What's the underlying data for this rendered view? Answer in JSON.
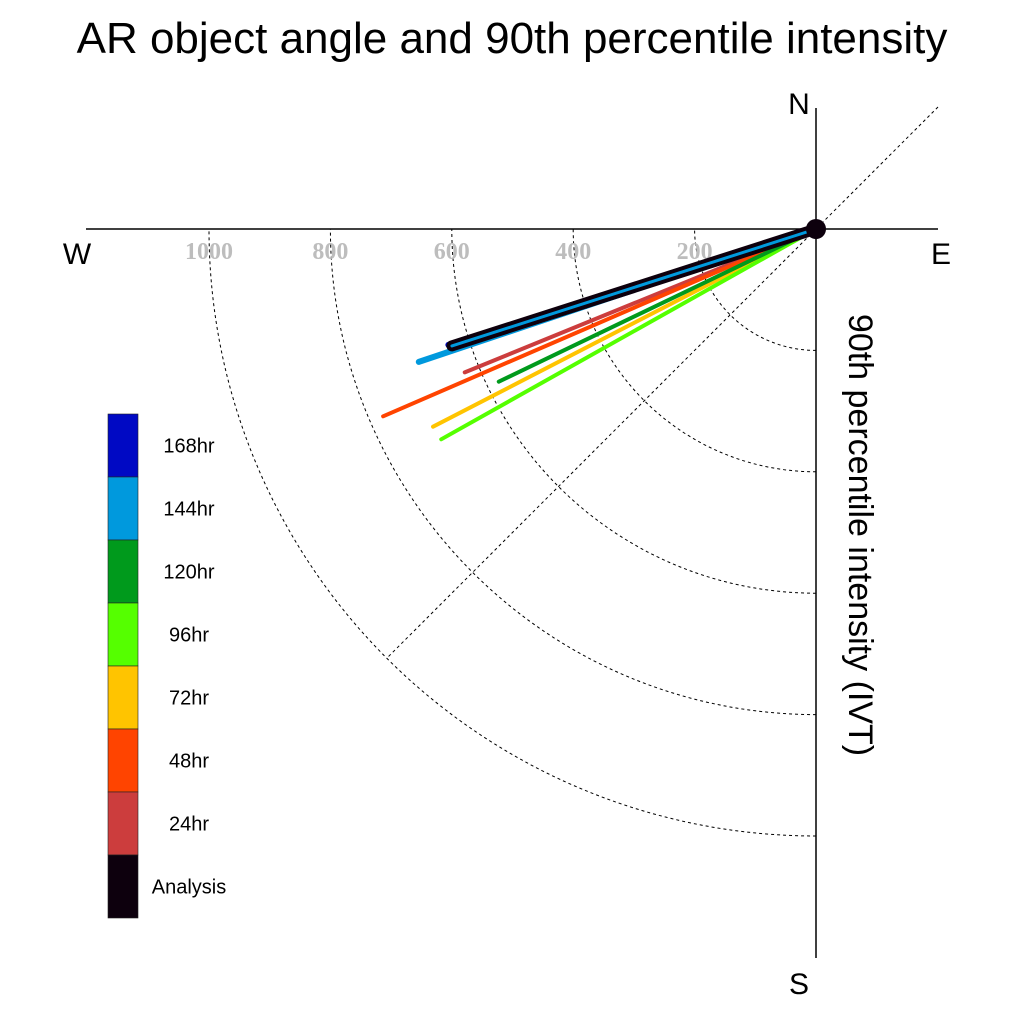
{
  "chart_data": {
    "type": "polar-vector",
    "title": "AR object angle and 90th percentile intensity",
    "ylabel": "90th percentile intensity (IVT)",
    "compass": {
      "north": "N",
      "south": "S",
      "east": "E",
      "west": "W"
    },
    "radial_ticks": [
      {
        "value": 200,
        "label": "200"
      },
      {
        "value": 400,
        "label": "400"
      },
      {
        "value": 600,
        "label": "600"
      },
      {
        "value": 800,
        "label": "800"
      },
      {
        "value": 1000,
        "label": "1000"
      }
    ],
    "rmax": 1200,
    "legend": {
      "entries": [
        {
          "label": "168hr",
          "color": "#0009c4"
        },
        {
          "label": "144hr",
          "color": "#0099dd"
        },
        {
          "label": "120hr",
          "color": "#009a1c"
        },
        {
          "label": "96hr",
          "color": "#55ff00"
        },
        {
          "label": "72hr",
          "color": "#ffc400"
        },
        {
          "label": "48hr",
          "color": "#ff4400"
        },
        {
          "label": "24hr",
          "color": "#cc3d3d"
        },
        {
          "label": "Analysis",
          "color": "#0d000d"
        }
      ]
    },
    "series": [
      {
        "name": "24hr",
        "color": "#cc3d3d",
        "intensity": 625,
        "angle_deg": 247.8
      },
      {
        "name": "48hr",
        "color": "#ff4400",
        "intensity": 777,
        "angle_deg": 246.6
      },
      {
        "name": "72hr",
        "color": "#ffc400",
        "intensity": 710,
        "angle_deg": 242.7
      },
      {
        "name": "96hr",
        "color": "#55ff00",
        "intensity": 708,
        "angle_deg": 240.7
      },
      {
        "name": "120hr",
        "color": "#009a1c",
        "intensity": 580,
        "angle_deg": 244.3
      },
      {
        "name": "144hr",
        "color": "#0099dd",
        "intensity": 690,
        "angle_deg": 251.5
      },
      {
        "name": "168hr",
        "color": "#0009c4",
        "intensity": 635,
        "angle_deg": 252.5
      },
      {
        "name": "Analysis",
        "color": "#0d000d",
        "intensity": 630,
        "angle_deg": 252.2
      }
    ]
  }
}
